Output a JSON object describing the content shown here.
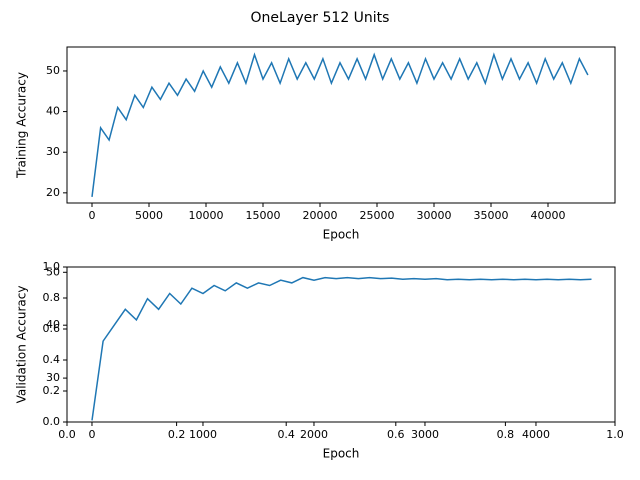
{
  "figure_title": "OneLayer 512 Units",
  "chart_data": [
    {
      "type": "line",
      "xlabel": "Epoch",
      "ylabel": "Training Accuracy",
      "color": "#1f77b4",
      "xlim": [
        -2193,
        45877
      ],
      "ylim": [
        17.5,
        55.9
      ],
      "xticks": [
        0,
        5000,
        10000,
        15000,
        20000,
        25000,
        30000,
        35000,
        40000
      ],
      "yticks": [
        20,
        30,
        40,
        50
      ],
      "x": [
        0,
        750,
        1500,
        2250,
        3000,
        3750,
        4500,
        5250,
        6000,
        6750,
        7500,
        8250,
        9000,
        9750,
        10500,
        11250,
        12000,
        12750,
        13500,
        14250,
        15000,
        15750,
        16500,
        17250,
        18000,
        18750,
        19500,
        20250,
        21000,
        21750,
        22500,
        23250,
        24000,
        24750,
        25500,
        26250,
        27000,
        27750,
        28500,
        29250,
        30000,
        30750,
        31500,
        32250,
        33000,
        33750,
        34500,
        35250,
        36000,
        36750,
        37500,
        38250,
        39000,
        39750,
        40500,
        41250,
        42000,
        42750,
        43500
      ],
      "values": [
        19,
        36,
        33,
        41,
        38,
        44,
        41,
        46,
        43,
        47,
        44,
        48,
        45,
        50,
        46,
        51,
        47,
        52,
        47,
        54,
        48,
        52,
        47,
        53,
        48,
        52,
        48,
        53,
        47,
        52,
        48,
        53,
        48,
        54,
        48,
        53,
        48,
        52,
        47,
        53,
        48,
        52,
        48,
        53,
        48,
        52,
        47,
        54,
        48,
        53,
        48,
        52,
        47,
        53,
        48,
        52,
        47,
        53,
        49
      ]
    },
    {
      "type": "line",
      "xlabel": "Epoch",
      "ylabel": "Validation Accuracy",
      "color": "#1f77b4",
      "xlim": [
        -225,
        4712
      ],
      "ylim": [
        21.7,
        51
      ],
      "xticks": [
        0,
        1000,
        2000,
        3000,
        4000
      ],
      "yticks": [
        30,
        40,
        50
      ],
      "overlay": {
        "xlim": [
          0,
          1
        ],
        "ylim": [
          0,
          1
        ],
        "xticks": [
          {
            "value": 0,
            "label": "0.0"
          },
          {
            "value": 0.2,
            "label": "0.2"
          },
          {
            "value": 0.4,
            "label": "0.4"
          },
          {
            "value": 0.6,
            "label": "0.6"
          },
          {
            "value": 0.8,
            "label": "0.8"
          },
          {
            "value": 1,
            "label": "1.0"
          }
        ],
        "yticks": [
          {
            "value": 0,
            "label": "0.0"
          },
          {
            "value": 0.2,
            "label": "0.2"
          },
          {
            "value": 0.4,
            "label": "0.4"
          },
          {
            "value": 0.6,
            "label": "0.6"
          },
          {
            "value": 0.8,
            "label": "0.8"
          },
          {
            "value": 1,
            "label": "1.0"
          }
        ]
      },
      "x": [
        0,
        100,
        200,
        300,
        400,
        500,
        600,
        700,
        800,
        900,
        1000,
        1100,
        1200,
        1300,
        1400,
        1500,
        1600,
        1700,
        1800,
        1900,
        2000,
        2100,
        2200,
        2300,
        2400,
        2500,
        2600,
        2700,
        2800,
        2900,
        3000,
        3100,
        3200,
        3300,
        3400,
        3500,
        3600,
        3700,
        3800,
        3900,
        4000,
        4100,
        4200,
        4300,
        4400,
        4500
      ],
      "values": [
        22,
        37,
        40,
        43,
        41,
        45,
        43,
        46,
        44,
        47,
        46,
        47.5,
        46.5,
        48,
        47,
        48,
        47.5,
        48.5,
        48,
        49,
        48.5,
        49,
        48.8,
        49,
        48.8,
        49,
        48.8,
        48.9,
        48.7,
        48.8,
        48.7,
        48.8,
        48.6,
        48.7,
        48.6,
        48.7,
        48.6,
        48.7,
        48.6,
        48.7,
        48.6,
        48.7,
        48.6,
        48.7,
        48.6,
        48.7
      ]
    }
  ]
}
